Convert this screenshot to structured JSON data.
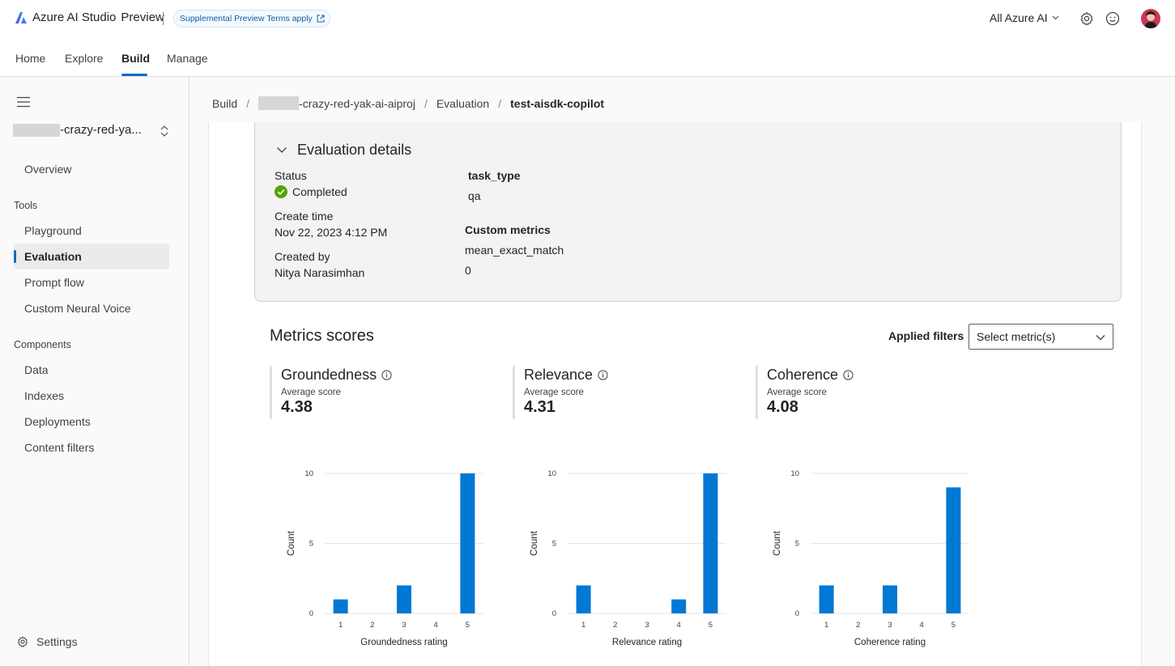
{
  "topbar": {
    "brand_name": "Azure AI Studio",
    "brand_suffix": "Preview",
    "terms_label": "Supplemental Preview Terms apply",
    "tenant_label": "All Azure AI",
    "icons": [
      "azure-ai-logo",
      "external-link-icon",
      "chevron-down-icon",
      "gear-icon",
      "smiley-feedback-icon",
      "user-avatar"
    ]
  },
  "mainnav": {
    "items": [
      "Home",
      "Explore",
      "Build",
      "Manage"
    ],
    "active": "Build"
  },
  "sidebar": {
    "project_name": "-crazy-red-ya...",
    "overview": "Overview",
    "tools_heading": "Tools",
    "tools": [
      "Playground",
      "Evaluation",
      "Prompt flow",
      "Custom Neural Voice"
    ],
    "active_item": "Evaluation",
    "components_heading": "Components",
    "components": [
      "Data",
      "Indexes",
      "Deployments",
      "Content filters"
    ],
    "settings_label": "Settings"
  },
  "breadcrumb": {
    "build": "Build",
    "project": "-crazy-red-yak-ai-aiproj",
    "evaluation": "Evaluation",
    "current": "test-aisdk-copilot"
  },
  "details": {
    "heading": "Evaluation details",
    "status_label": "Status",
    "status_value": "Completed",
    "status_color": "#57a300",
    "create_time_label": "Create time",
    "create_time_value": "Nov 22, 2023 4:12 PM",
    "created_by_label": "Created by",
    "created_by_value": "Nitya Narasimhan",
    "task_type_label": "task_type",
    "task_type_value": "qa",
    "custom_metrics_label": "Custom metrics",
    "custom_metric_name": "mean_exact_match",
    "custom_metric_value": "0"
  },
  "metrics": {
    "title": "Metrics scores",
    "filters_label": "Applied filters",
    "select_placeholder": "Select metric(s)",
    "average_label": "Average score",
    "scores": [
      {
        "name": "Groundedness",
        "value": "4.38"
      },
      {
        "name": "Relevance",
        "value": "4.31"
      },
      {
        "name": "Coherence",
        "value": "4.08"
      }
    ]
  },
  "chart_data": [
    {
      "type": "bar",
      "categories": [
        "1",
        "2",
        "3",
        "4",
        "5"
      ],
      "values": [
        1,
        0,
        2,
        0,
        10
      ],
      "xlabel": "Groundedness rating",
      "ylabel": "Count",
      "yticks": [
        "0",
        "5",
        "10"
      ],
      "ylim": [
        0,
        10
      ],
      "color": "#0078d4",
      "grid": true
    },
    {
      "type": "bar",
      "categories": [
        "1",
        "2",
        "3",
        "4",
        "5"
      ],
      "values": [
        2,
        0,
        0,
        1,
        10
      ],
      "xlabel": "Relevance rating",
      "ylabel": "Count",
      "yticks": [
        "0",
        "5",
        "10"
      ],
      "ylim": [
        0,
        10
      ],
      "color": "#0078d4",
      "grid": true
    },
    {
      "type": "bar",
      "categories": [
        "1",
        "2",
        "3",
        "4",
        "5"
      ],
      "values": [
        2,
        0,
        2,
        0,
        9
      ],
      "xlabel": "Coherence rating",
      "ylabel": "Count",
      "yticks": [
        "0",
        "5",
        "10"
      ],
      "ylim": [
        0,
        10
      ],
      "color": "#0078d4",
      "grid": true
    }
  ]
}
